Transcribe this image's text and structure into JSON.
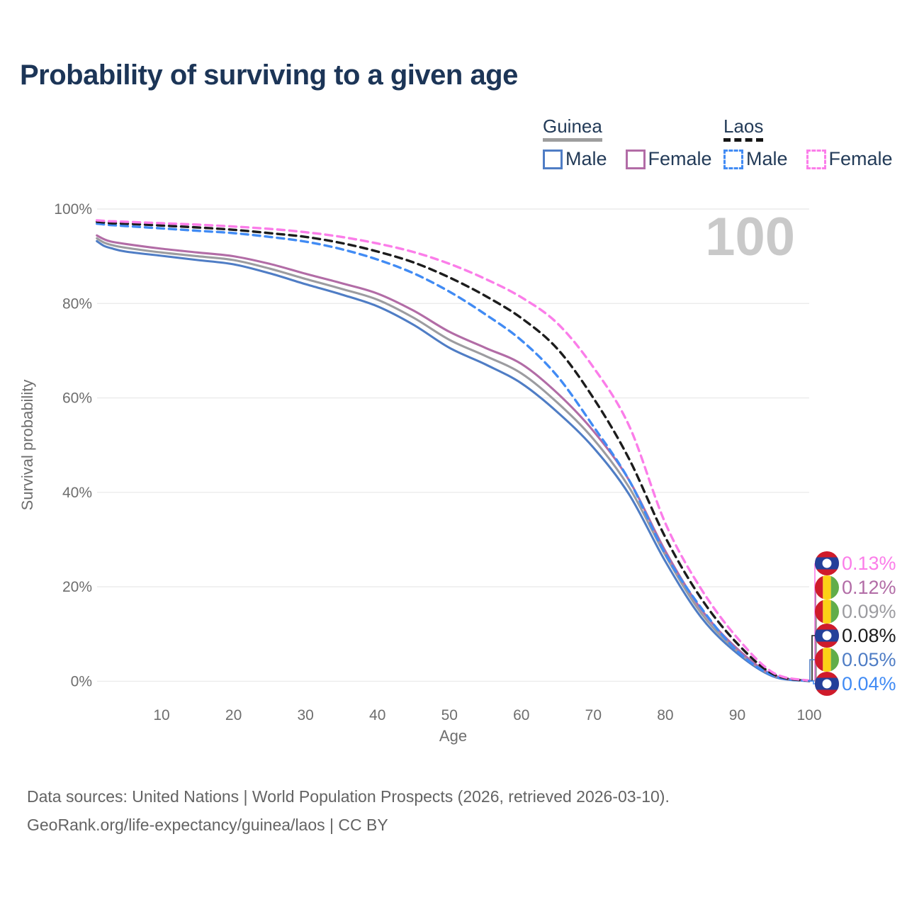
{
  "title": "Probability of surviving to a given age",
  "watermark": "100",
  "legend": {
    "groups": [
      {
        "name": "Guinea",
        "line_style": "solid",
        "items": [
          {
            "label": "Male",
            "series": "guinea-male"
          },
          {
            "label": "Female",
            "series": "guinea-female"
          }
        ]
      },
      {
        "name": "Laos",
        "line_style": "dashed",
        "items": [
          {
            "label": "Male",
            "series": "laos-male"
          },
          {
            "label": "Female",
            "series": "laos-female"
          }
        ]
      }
    ]
  },
  "footer": {
    "line1": "Data sources: United Nations | World Population Prospects (2026, retrieved 2026-03-10).",
    "line2": "GeoRank.org/life-expectancy/guinea/laos | CC BY"
  },
  "colors": {
    "title": "#1c3557",
    "axis_text": "#6e6e6e",
    "grid": "#ebebeb",
    "watermark": "#c9c9c9",
    "flag_guinea": {
      "red": "#cf1b2b",
      "yellow": "#fcd116",
      "green": "#61ad4a"
    },
    "flag_laos": {
      "red": "#cf1b2b",
      "blue": "#24409a",
      "white": "#ffffff"
    }
  },
  "chart_data": {
    "type": "line",
    "title": "Probability of surviving to a given age",
    "xlabel": "Age",
    "ylabel": "Survival probability",
    "xlim": [
      0,
      100
    ],
    "ylim": [
      0,
      100
    ],
    "x_ticks": [
      10,
      20,
      30,
      40,
      50,
      60,
      70,
      80,
      90,
      100
    ],
    "y_ticks": [
      0,
      20,
      40,
      60,
      80,
      100
    ],
    "grid": "horizontal",
    "legend_position": "top-right",
    "ages": [
      1,
      2,
      3,
      5,
      10,
      15,
      20,
      25,
      30,
      35,
      40,
      45,
      50,
      55,
      60,
      65,
      70,
      75,
      80,
      85,
      90,
      95,
      100
    ],
    "series": [
      {
        "id": "guinea-male",
        "name": "Guinea Male",
        "country": "Guinea",
        "sex": "Male",
        "color": "#4f7dc5",
        "dashed": false,
        "flag": "guinea",
        "end_label": "0.05%",
        "values": [
          93.2,
          92.2,
          91.7,
          91.0,
          90.1,
          89.2,
          88.3,
          86.4,
          84.1,
          81.9,
          79.4,
          75.5,
          70.6,
          67.1,
          63.1,
          57.0,
          49.5,
          39.5,
          25.4,
          13.5,
          5.9,
          1.0,
          0.05
        ]
      },
      {
        "id": "guinea-all",
        "name": "Guinea",
        "country": "Guinea",
        "sex": "Both",
        "color": "#9c9ca0",
        "dashed": false,
        "flag": "guinea",
        "end_label": "0.09%",
        "values": [
          93.8,
          92.9,
          92.4,
          91.8,
          90.8,
          90.0,
          89.2,
          87.4,
          85.2,
          83.1,
          80.8,
          77.0,
          72.3,
          68.9,
          65.2,
          59.0,
          51.3,
          41.0,
          26.7,
          14.4,
          6.4,
          1.2,
          0.09
        ]
      },
      {
        "id": "guinea-female",
        "name": "Guinea Female",
        "country": "Guinea",
        "sex": "Female",
        "color": "#b26ca6",
        "dashed": false,
        "flag": "guinea",
        "end_label": "0.12%",
        "values": [
          94.4,
          93.6,
          93.1,
          92.6,
          91.6,
          90.8,
          90.0,
          88.4,
          86.3,
          84.3,
          82.1,
          78.5,
          74.0,
          70.6,
          67.2,
          61.0,
          53.0,
          42.5,
          27.6,
          15.2,
          6.9,
          1.3,
          0.12
        ]
      },
      {
        "id": "laos-male",
        "name": "Laos Male",
        "country": "Laos",
        "sex": "Male",
        "color": "#418bf4",
        "dashed": true,
        "flag": "laos",
        "end_label": "0.04%",
        "values": [
          96.9,
          96.75,
          96.6,
          96.4,
          95.9,
          95.4,
          94.9,
          94.1,
          93.1,
          91.5,
          89.3,
          86.4,
          82.5,
          77.7,
          72.2,
          64.6,
          54.0,
          42.5,
          27.0,
          15.5,
          6.4,
          1.2,
          0.04
        ]
      },
      {
        "id": "laos-all",
        "name": "Laos",
        "country": "Laos",
        "sex": "Both",
        "color": "#1c1c1c",
        "dashed": true,
        "flag": "laos",
        "end_label": "0.08%",
        "values": [
          97.3,
          97.15,
          97.0,
          96.9,
          96.5,
          96.1,
          95.6,
          94.9,
          94.1,
          92.8,
          91.0,
          88.7,
          85.5,
          81.6,
          76.9,
          70.4,
          60.0,
          47.0,
          30.5,
          17.5,
          8.0,
          1.5,
          0.08
        ]
      },
      {
        "id": "laos-female",
        "name": "Laos Female",
        "country": "Laos",
        "sex": "Female",
        "color": "#fb7de9",
        "dashed": true,
        "flag": "laos",
        "end_label": "0.13%",
        "values": [
          97.6,
          97.5,
          97.4,
          97.3,
          97.0,
          96.7,
          96.3,
          95.8,
          95.1,
          94.1,
          92.7,
          90.9,
          88.4,
          85.2,
          81.3,
          75.8,
          66.5,
          54.0,
          33.5,
          19.5,
          9.2,
          1.8,
          0.13
        ]
      }
    ],
    "end_label_order": [
      "laos-female",
      "guinea-female",
      "guinea-all",
      "laos-all",
      "guinea-male",
      "laos-male"
    ]
  }
}
